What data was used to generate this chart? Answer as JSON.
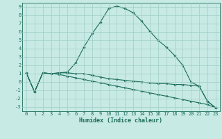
{
  "xlabel": "Humidex (Indice chaleur)",
  "background_color": "#c8eae4",
  "grid_color": "#9ecec6",
  "line_color": "#1a6b5a",
  "xlim": [
    -0.5,
    23.5
  ],
  "ylim": [
    -3.5,
    9.5
  ],
  "xticks": [
    0,
    1,
    2,
    3,
    4,
    5,
    6,
    7,
    8,
    9,
    10,
    11,
    12,
    13,
    14,
    15,
    16,
    17,
    18,
    19,
    20,
    21,
    22,
    23
  ],
  "yticks": [
    -3,
    -2,
    -1,
    0,
    1,
    2,
    3,
    4,
    5,
    6,
    7,
    8,
    9
  ],
  "curve1_x": [
    0,
    1,
    2,
    3,
    4,
    5,
    6,
    7,
    8,
    9,
    10,
    11,
    12,
    13,
    14,
    15,
    16,
    17,
    18,
    19,
    20,
    21,
    22,
    23
  ],
  "curve1_y": [
    1.1,
    -1.2,
    1.1,
    1.0,
    1.1,
    1.2,
    2.3,
    4.2,
    5.8,
    7.2,
    8.8,
    9.1,
    8.8,
    8.3,
    7.3,
    6.1,
    5.0,
    4.2,
    3.2,
    2.0,
    0.0,
    -0.5,
    -2.3,
    -3.1
  ],
  "curve2_x": [
    0,
    1,
    2,
    3,
    4,
    5,
    6,
    7,
    8,
    9,
    10,
    11,
    12,
    13,
    14,
    15,
    16,
    17,
    18,
    19,
    20,
    21,
    22,
    23
  ],
  "curve2_y": [
    1.1,
    -1.2,
    1.1,
    1.0,
    1.1,
    1.1,
    1.0,
    1.0,
    0.8,
    0.6,
    0.4,
    0.3,
    0.2,
    0.1,
    0.0,
    -0.1,
    -0.2,
    -0.2,
    -0.3,
    -0.3,
    -0.4,
    -0.5,
    -2.3,
    -3.1
  ],
  "curve3_x": [
    0,
    1,
    2,
    3,
    4,
    5,
    6,
    7,
    8,
    9,
    10,
    11,
    12,
    13,
    14,
    15,
    16,
    17,
    18,
    19,
    20,
    21,
    22,
    23
  ],
  "curve3_y": [
    1.1,
    -1.2,
    1.1,
    1.0,
    0.9,
    0.7,
    0.5,
    0.3,
    0.1,
    -0.1,
    -0.3,
    -0.5,
    -0.7,
    -0.9,
    -1.1,
    -1.3,
    -1.5,
    -1.7,
    -1.9,
    -2.1,
    -2.3,
    -2.5,
    -2.7,
    -3.1
  ],
  "tick_fontsize": 5.0,
  "xlabel_fontsize": 6.0,
  "marker_size": 1.8,
  "line_width": 0.8
}
